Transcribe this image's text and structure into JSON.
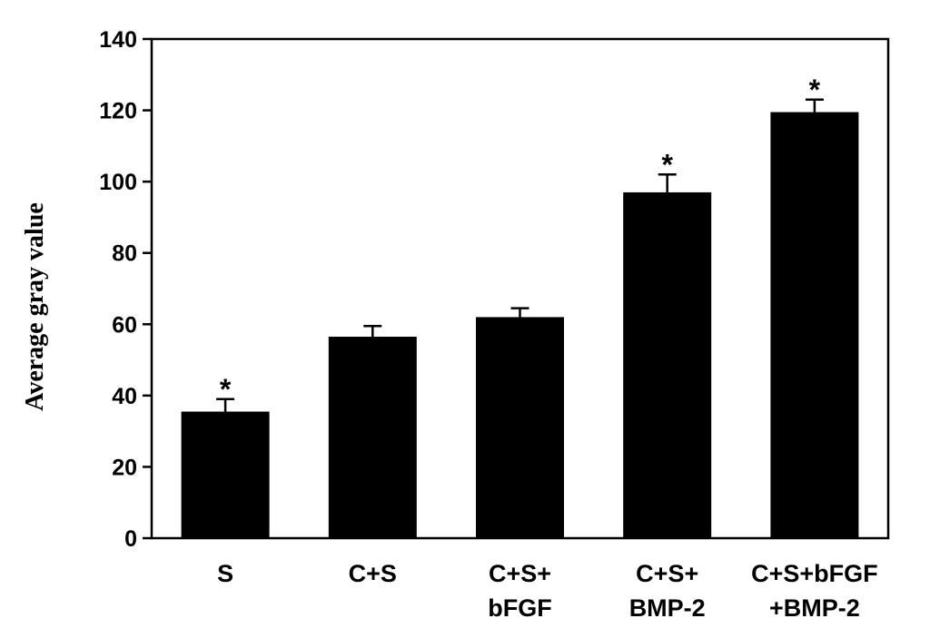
{
  "chart_data": {
    "type": "bar",
    "ylabel": "Average gray value",
    "xlabel": "",
    "ylim": [
      0,
      140
    ],
    "yticks": [
      0,
      20,
      40,
      60,
      80,
      100,
      120,
      140
    ],
    "categories": [
      [
        "S"
      ],
      [
        "C+S"
      ],
      [
        "C+S+",
        "bFGF"
      ],
      [
        "C+S+",
        "BMP-2"
      ],
      [
        "C+S+bFGF",
        "+BMP-2"
      ]
    ],
    "values": [
      35.5,
      56.5,
      62.0,
      97.0,
      119.5
    ],
    "errors": [
      3.5,
      3.0,
      2.5,
      5.0,
      3.5
    ],
    "significance": [
      "*",
      "",
      "",
      "*",
      "*"
    ],
    "bar_color": "#000000"
  }
}
